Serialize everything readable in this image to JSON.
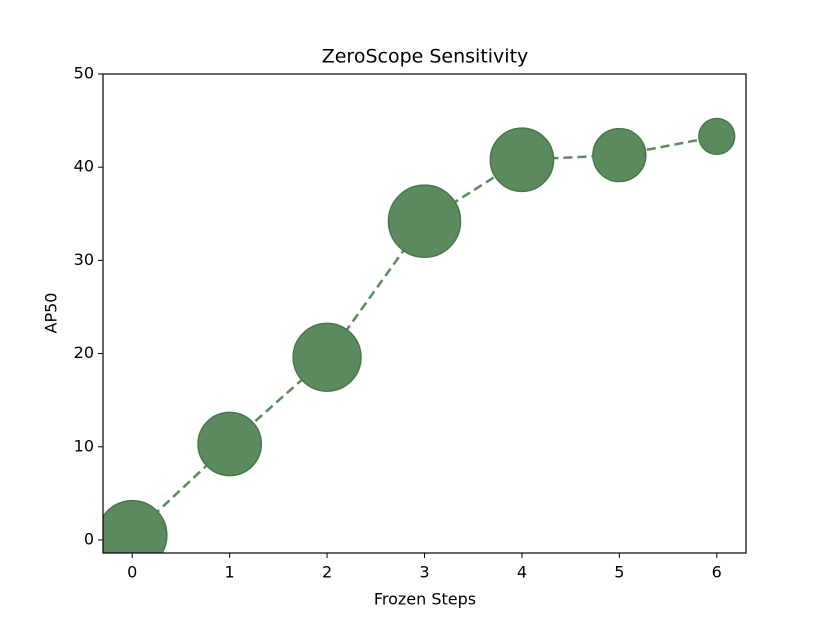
{
  "chart_data": {
    "type": "scatter",
    "title": "ZeroScope Sensitivity",
    "x_label": "Frozen Steps",
    "y_label": "AP50",
    "x": [
      0,
      1,
      2,
      3,
      4,
      5,
      6
    ],
    "series": [
      {
        "color": "#5b8a5e",
        "values": [
          0.5,
          10.3,
          19.6,
          34.2,
          40.8,
          41.3,
          43.3
        ],
        "sizes": [
          1200,
          1000,
          1150,
          1300,
          1000,
          700,
          320
        ]
      }
    ],
    "line_style": "dashed",
    "xlim": [
      -0.3,
      6.3
    ],
    "ylim": [
      -1.4,
      50
    ],
    "xticks": [
      0,
      1,
      2,
      3,
      4,
      5,
      6
    ],
    "yticks": [
      0,
      10,
      20,
      30,
      40,
      50
    ],
    "grid": false
  }
}
